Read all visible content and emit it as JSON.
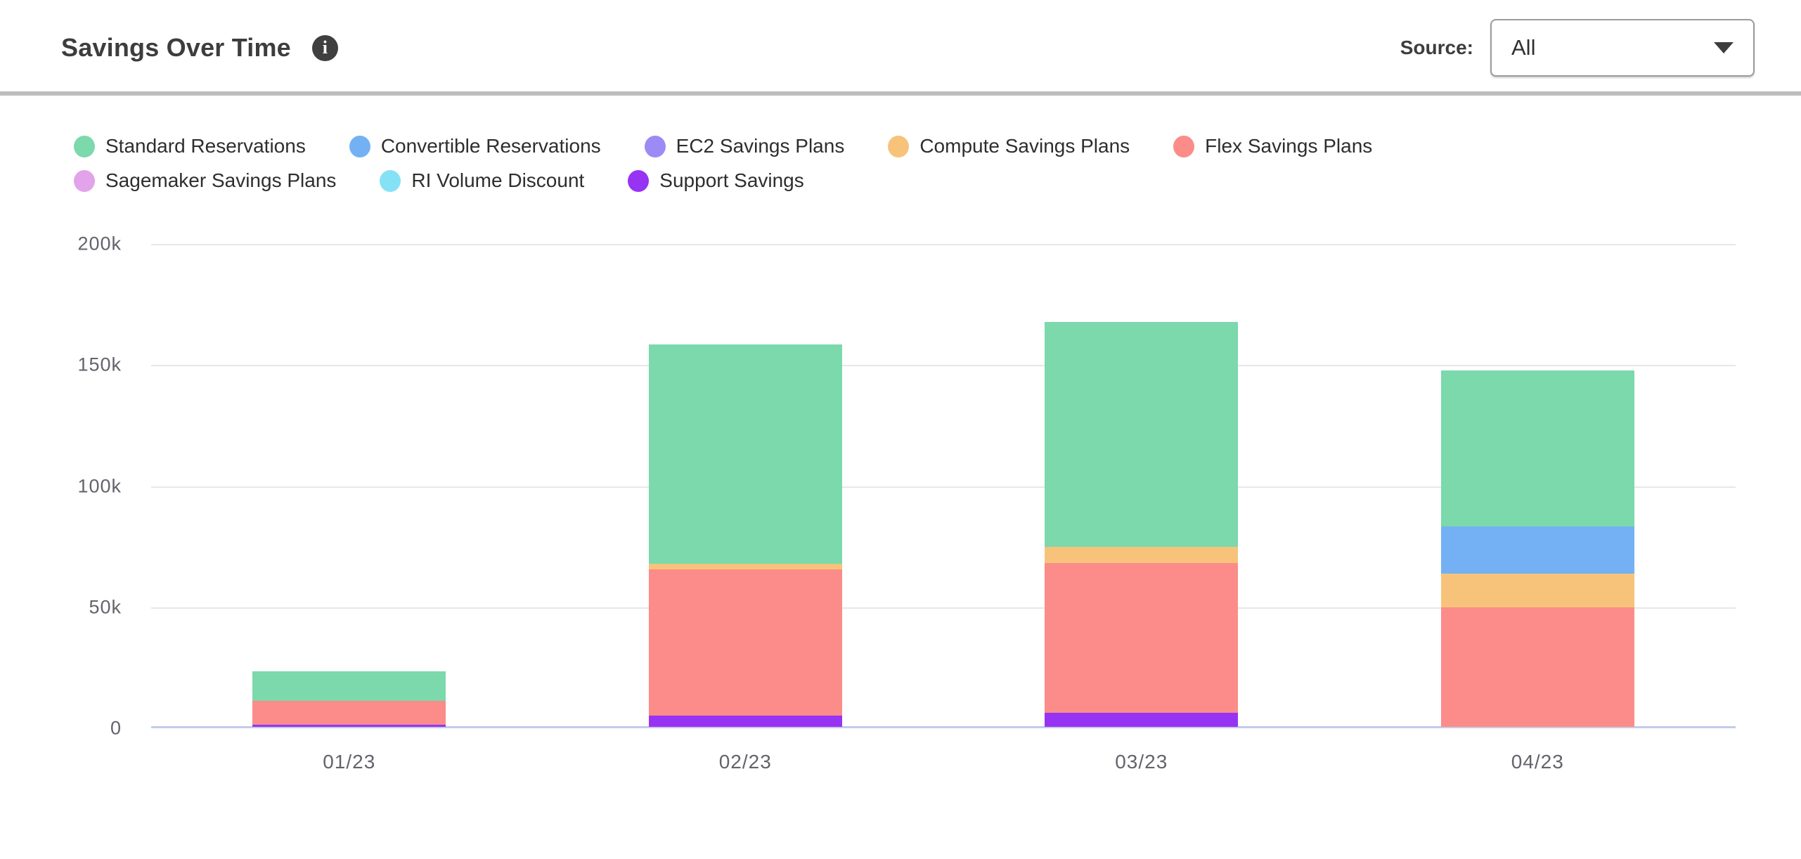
{
  "header": {
    "title": "Savings Over Time",
    "info_glyph": "i",
    "source_label": "Source:",
    "source_value": "All"
  },
  "chart_data": {
    "type": "bar",
    "subtype": "stacked",
    "categories": [
      "01/23",
      "02/23",
      "03/23",
      "04/23"
    ],
    "series": [
      {
        "name": "Standard Reservations",
        "color": "#7bd9ac",
        "values": [
          12200,
          90500,
          93000,
          64400
        ]
      },
      {
        "name": "Convertible Reservations",
        "color": "#73b1f4",
        "values": [
          0,
          0,
          0,
          19400
        ]
      },
      {
        "name": "EC2 Savings Plans",
        "color": "#9c8bf5",
        "values": [
          0,
          0,
          0,
          0
        ]
      },
      {
        "name": "Compute Savings Plans",
        "color": "#f7c37a",
        "values": [
          0,
          2400,
          6700,
          13900
        ]
      },
      {
        "name": "Flex Savings Plans",
        "color": "#fb8c89",
        "values": [
          10000,
          60300,
          61800,
          49400
        ]
      },
      {
        "name": "Sagemaker Savings Plans",
        "color": "#e2a3ea",
        "values": [
          0,
          0,
          0,
          0
        ]
      },
      {
        "name": "RI Volume Discount",
        "color": "#85e2f6",
        "values": [
          0,
          0,
          0,
          0
        ]
      },
      {
        "name": "Support Savings",
        "color": "#9733f2",
        "values": [
          800,
          4800,
          5800,
          0
        ]
      }
    ],
    "stack_order_bottom_to_top": [
      "Support Savings",
      "RI Volume Discount",
      "Sagemaker Savings Plans",
      "Flex Savings Plans",
      "Compute Savings Plans",
      "EC2 Savings Plans",
      "Convertible Reservations",
      "Standard Reservations"
    ],
    "title": "Savings Over Time",
    "xlabel": "",
    "ylabel": "",
    "ylim": [
      0,
      200000
    ],
    "y_ticks": [
      "200k",
      "150k",
      "100k",
      "50k",
      "0"
    ],
    "grid": true,
    "legend_position": "top",
    "legend_rows": [
      5,
      3
    ]
  },
  "colors": {
    "title_text": "#3d3d3d",
    "legend_text": "#2e2e2e",
    "axis_text": "#63636b",
    "gridline": "#e7e7e9",
    "baseline": "#c5cce9",
    "divider": "#bdbdbd",
    "dropdown_border": "#9b9b9b",
    "info_icon_bg": "#3f3f3f"
  }
}
